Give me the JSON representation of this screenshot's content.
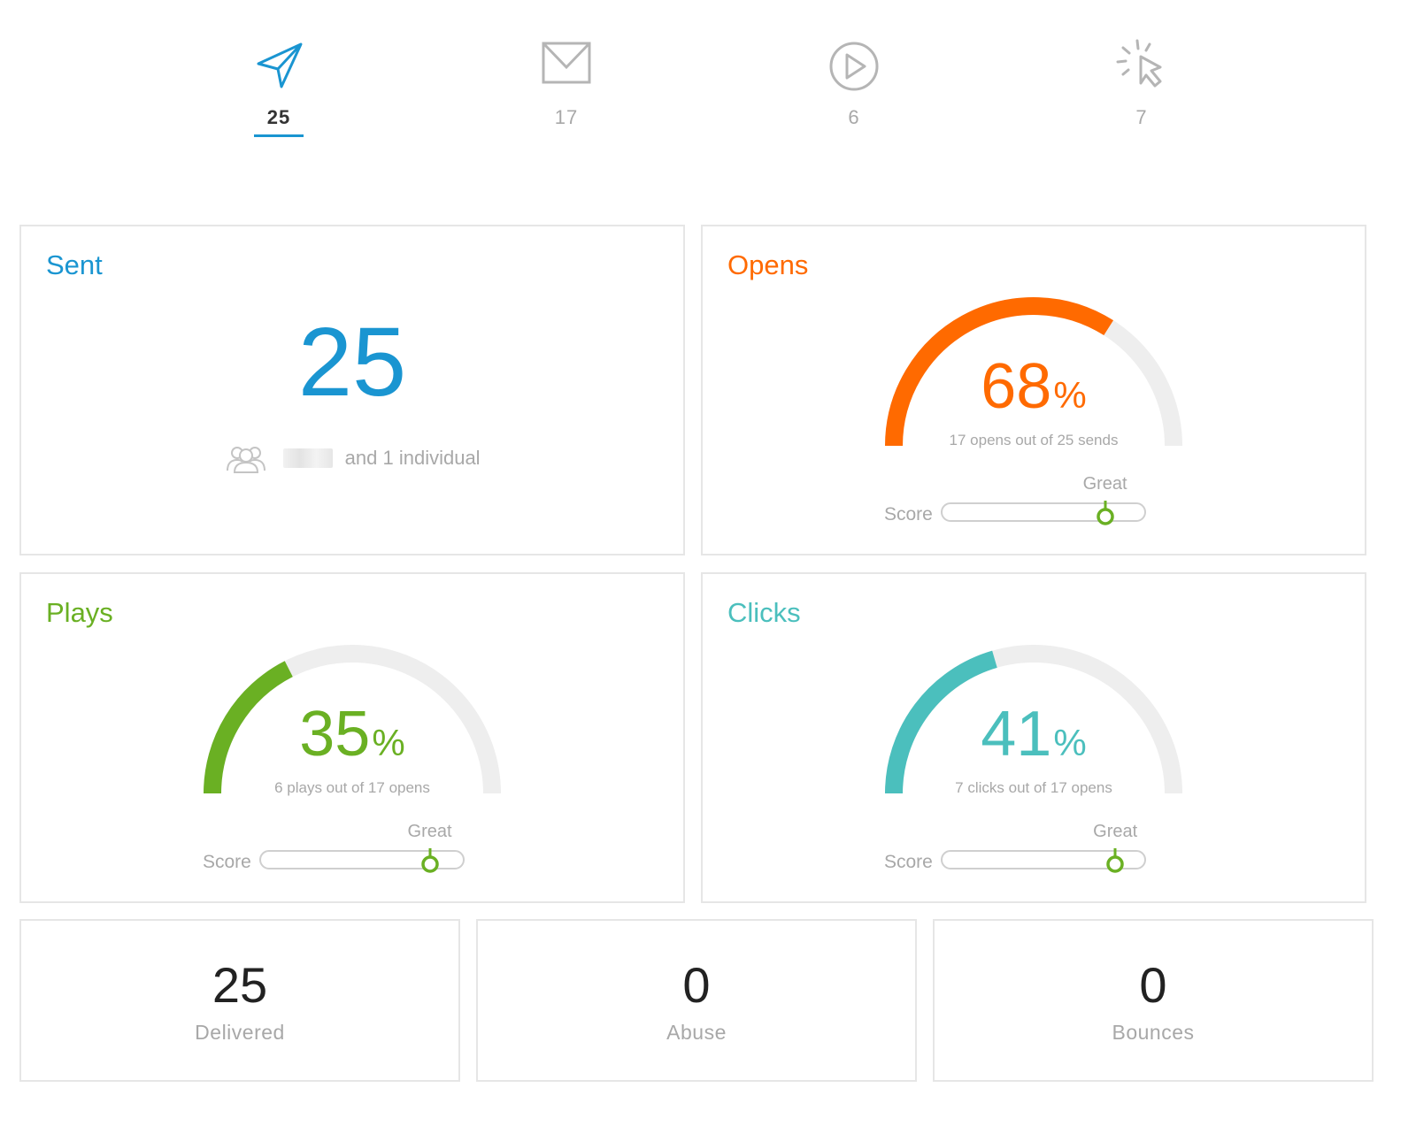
{
  "tabs": [
    {
      "icon": "send-icon",
      "count": "25",
      "active": true
    },
    {
      "icon": "envelope-icon",
      "count": "17",
      "active": false
    },
    {
      "icon": "play-icon",
      "count": "6",
      "active": false
    },
    {
      "icon": "click-icon",
      "count": "7",
      "active": false
    }
  ],
  "sent": {
    "title": "Sent",
    "count": "25",
    "recipients_text": "and 1 individual",
    "color": "#1a95d1"
  },
  "opens": {
    "title": "Opens",
    "percent": "68",
    "percent_sign": "%",
    "subtitle": "17 opens out of 25 sends",
    "score_label": "Score",
    "score_rating": "Great",
    "score_position": 0.8,
    "gauge_fraction": 0.68,
    "color": "#ff6a00"
  },
  "plays": {
    "title": "Plays",
    "percent": "35",
    "percent_sign": "%",
    "subtitle": "6 plays out of 17 opens",
    "score_label": "Score",
    "score_rating": "Great",
    "score_position": 0.83,
    "gauge_fraction": 0.35,
    "color": "#6ab023"
  },
  "clicks": {
    "title": "Clicks",
    "percent": "41",
    "percent_sign": "%",
    "subtitle": "7 clicks out of 17 opens",
    "score_label": "Score",
    "score_rating": "Great",
    "score_position": 0.85,
    "gauge_fraction": 0.41,
    "color": "#4bbfbd"
  },
  "stats": [
    {
      "value": "25",
      "label": "Delivered"
    },
    {
      "value": "0",
      "label": "Abuse"
    },
    {
      "value": "0",
      "label": "Bounces"
    }
  ],
  "colors": {
    "track": "#eeeeee",
    "score_knob": "#6ab023",
    "muted": "#a8a8a8"
  }
}
